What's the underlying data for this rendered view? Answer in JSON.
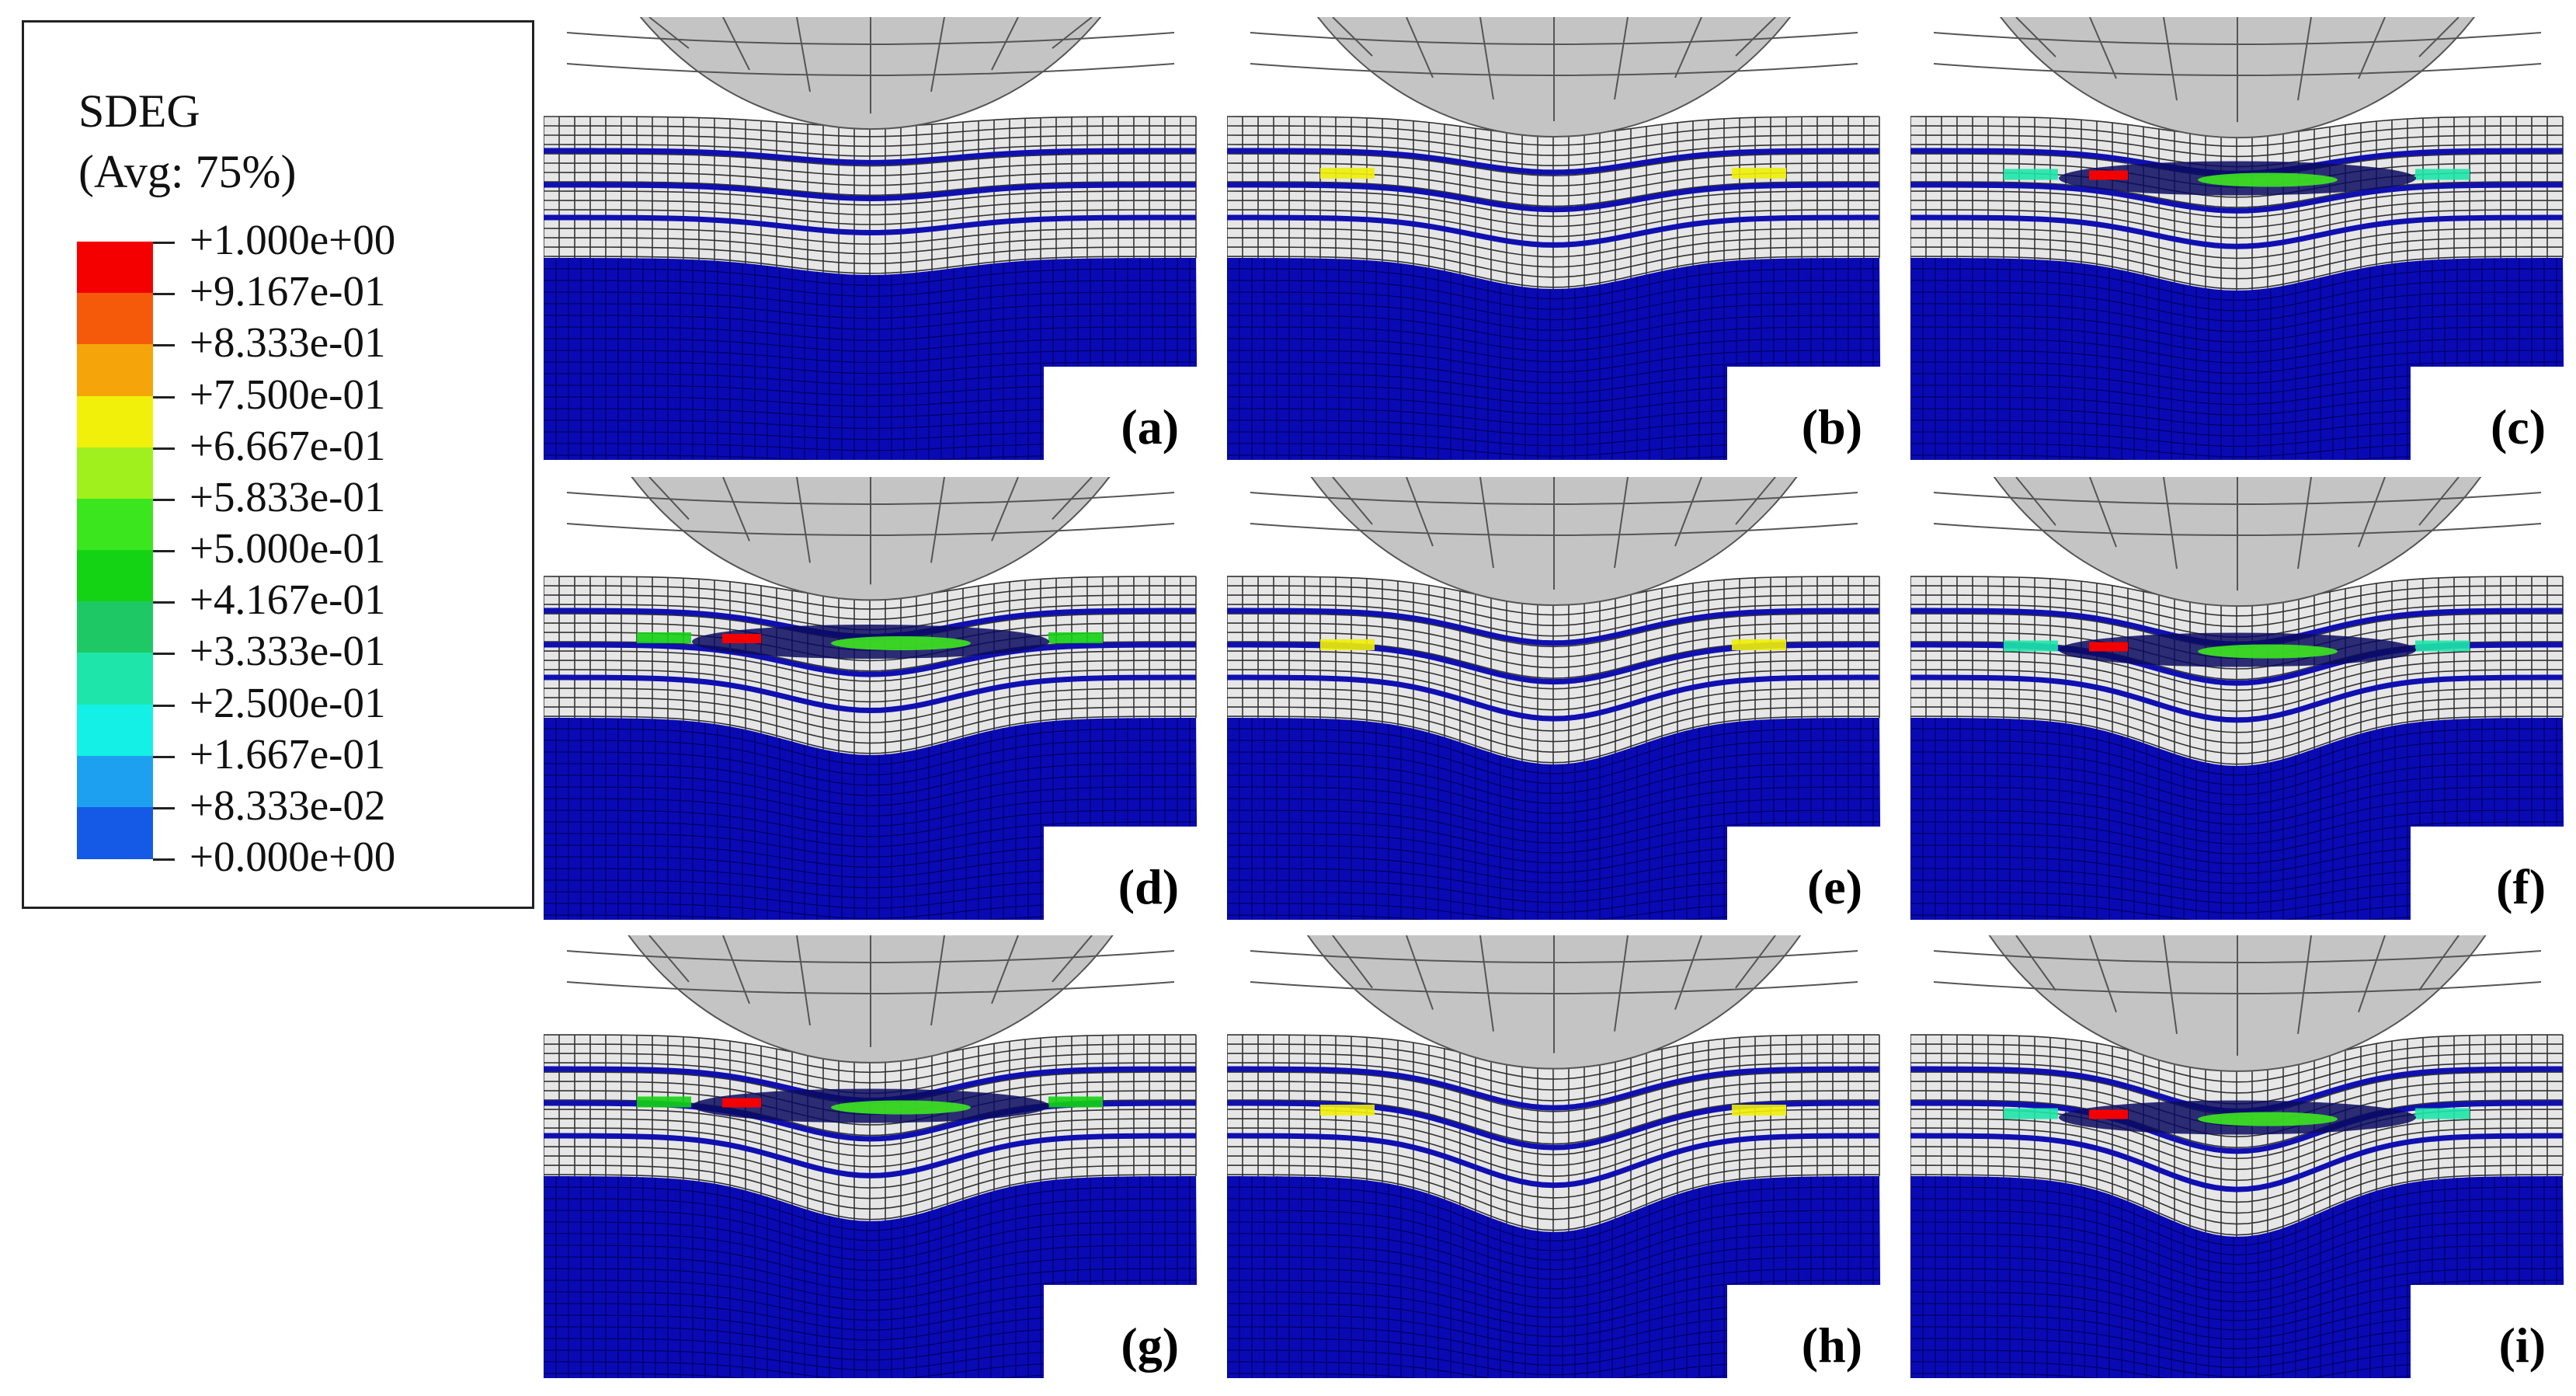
{
  "legend": {
    "variable": "SDEG",
    "averaging": "(Avg: 75%)",
    "ticks": [
      "+1.000e+00",
      "+9.167e-01",
      "+8.333e-01",
      "+7.500e-01",
      "+6.667e-01",
      "+5.833e-01",
      "+5.000e-01",
      "+4.167e-01",
      "+3.333e-01",
      "+2.500e-01",
      "+1.667e-01",
      "+8.333e-02",
      "+0.000e+00"
    ],
    "colors": [
      "#f50000",
      "#f55a0a",
      "#f5a50a",
      "#f0f00a",
      "#a0f01e",
      "#3ce61e",
      "#14d214",
      "#1ec864",
      "#1ee6aa",
      "#14f0e6",
      "#1ea0f0",
      "#145ae6",
      "#0000f5"
    ]
  },
  "panels": [
    {
      "label": "(a)"
    },
    {
      "label": "(b)"
    },
    {
      "label": "(c)"
    },
    {
      "label": "(d)"
    },
    {
      "label": "(e)"
    },
    {
      "label": "(f)"
    },
    {
      "label": "(g)"
    },
    {
      "label": "(h)"
    },
    {
      "label": "(i)"
    }
  ],
  "scene_colors": {
    "indenter": "#c4c4c4",
    "mesh_light": "#e6e6e6",
    "interlayer": "#1010b0",
    "substrate": "#0a0ab4"
  }
}
